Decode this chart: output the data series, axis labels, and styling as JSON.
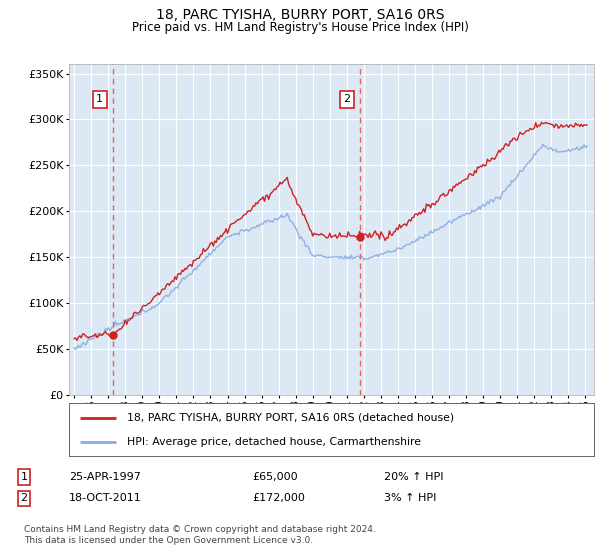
{
  "title": "18, PARC TYISHA, BURRY PORT, SA16 0RS",
  "subtitle": "Price paid vs. HM Land Registry's House Price Index (HPI)",
  "legend_line1": "18, PARC TYISHA, BURRY PORT, SA16 0RS (detached house)",
  "legend_line2": "HPI: Average price, detached house, Carmarthenshire",
  "footnote": "Contains HM Land Registry data © Crown copyright and database right 2024.\nThis data is licensed under the Open Government Licence v3.0.",
  "annotation1_date": "25-APR-1997",
  "annotation1_price": "£65,000",
  "annotation1_hpi": "20% ↑ HPI",
  "annotation2_date": "18-OCT-2011",
  "annotation2_price": "£172,000",
  "annotation2_hpi": "3% ↑ HPI",
  "sale1_year": 1997.3,
  "sale1_price": 65000,
  "sale2_year": 2011.8,
  "sale2_price": 172000,
  "ylim": [
    0,
    360000
  ],
  "yticks": [
    0,
    50000,
    100000,
    150000,
    200000,
    250000,
    300000,
    350000
  ],
  "xlim_start": 1994.7,
  "xlim_end": 2025.5,
  "background_color": "#dce9f5",
  "grid_color": "#ffffff",
  "red_line_color": "#cc2222",
  "vline_color": "#dd6666",
  "hpi_color": "#88aadd"
}
